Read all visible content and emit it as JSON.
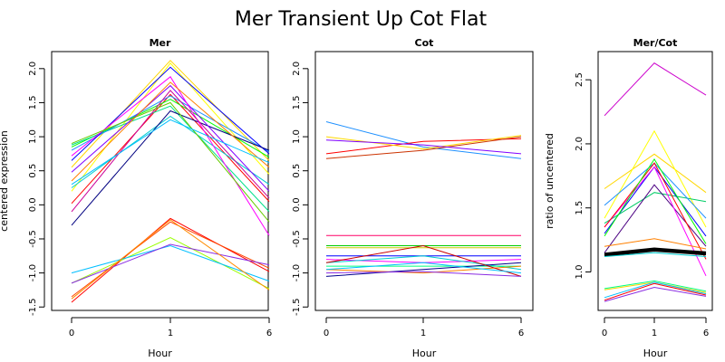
{
  "figure": {
    "title": "Mer Transient Up Cot Flat"
  },
  "chart_data": [
    {
      "type": "line",
      "title": "Mer",
      "xlabel": "Hour",
      "ylabel": "centered expression",
      "categories": [
        "0",
        "1",
        "6"
      ],
      "ylim": [
        -1.55,
        2.25
      ],
      "yticks": [
        -1.5,
        -1.0,
        -0.5,
        0.0,
        0.5,
        1.0,
        1.5,
        2.0
      ],
      "yticklabels": [
        "-1.5",
        "-1.0",
        "-0.5",
        "0.0",
        "0.5",
        "1.0",
        "1.5",
        "2.0"
      ],
      "grid": false,
      "series": [
        {
          "color": "#ff0000",
          "values": [
            0.02,
            1.62,
            0.05
          ]
        },
        {
          "color": "#ffd700",
          "values": [
            0.55,
            2.12,
            0.65
          ]
        },
        {
          "color": "#ffff00",
          "values": [
            0.2,
            2.08,
            0.45
          ]
        },
        {
          "color": "#00ff00",
          "values": [
            0.85,
            1.55,
            0.7
          ]
        },
        {
          "color": "#00e08a",
          "values": [
            0.88,
            1.45,
            -0.1
          ]
        },
        {
          "color": "#00ced1",
          "values": [
            0.25,
            1.3,
            0.3
          ]
        },
        {
          "color": "#1e90ff",
          "values": [
            0.8,
            1.6,
            0.78
          ]
        },
        {
          "color": "#0000ff",
          "values": [
            0.65,
            2.02,
            0.75
          ]
        },
        {
          "color": "#000080",
          "values": [
            -0.3,
            1.38,
            0.8
          ]
        },
        {
          "color": "#8000ff",
          "values": [
            0.48,
            1.75,
            0.2
          ]
        },
        {
          "color": "#ff00ff",
          "values": [
            0.72,
            1.88,
            -0.45
          ]
        },
        {
          "color": "#cc0099",
          "values": [
            -0.1,
            1.68,
            0.1
          ]
        },
        {
          "color": "#ff8000",
          "values": [
            0.35,
            1.8,
            0.55
          ]
        },
        {
          "color": "#66cc00",
          "values": [
            0.9,
            1.5,
            -0.25
          ]
        },
        {
          "color": "#00bfff",
          "values": [
            0.3,
            1.25,
            0.62
          ]
        },
        {
          "color": "#ff0000",
          "values": [
            -1.43,
            -0.2,
            -0.98
          ]
        },
        {
          "color": "#ff4500",
          "values": [
            -1.35,
            -0.25,
            -0.93
          ]
        },
        {
          "color": "#99ff00",
          "values": [
            -1.15,
            -0.48,
            -1.23
          ]
        },
        {
          "color": "#00bfff",
          "values": [
            -1.0,
            -0.6,
            -1.12
          ]
        },
        {
          "color": "#8a2be2",
          "values": [
            -1.15,
            -0.58,
            -0.88
          ]
        },
        {
          "color": "#ff8c00",
          "values": [
            -1.38,
            -0.22,
            -1.25
          ]
        }
      ]
    },
    {
      "type": "line",
      "title": "Cot",
      "xlabel": "Hour",
      "ylabel": "",
      "categories": [
        "0",
        "1",
        "6"
      ],
      "ylim": [
        -1.55,
        2.25
      ],
      "yticks": [
        -1.5,
        -1.0,
        -0.5,
        0.0,
        0.5,
        1.0,
        1.5,
        2.0
      ],
      "yticklabels": [
        "-1.5",
        "-1.0",
        "-0.5",
        "0.0",
        "0.5",
        "1.0",
        "1.5",
        "2.0"
      ],
      "grid": false,
      "series": [
        {
          "color": "#1e90ff",
          "values": [
            1.22,
            0.85,
            0.68
          ]
        },
        {
          "color": "#ff0000",
          "values": [
            0.75,
            0.93,
            0.97
          ]
        },
        {
          "color": "#ffd700",
          "values": [
            1.0,
            0.82,
            1.02
          ]
        },
        {
          "color": "#cc3300",
          "values": [
            0.68,
            0.8,
            1.0
          ]
        },
        {
          "color": "#8000ff",
          "values": [
            0.95,
            0.88,
            0.75
          ]
        },
        {
          "color": "#ff0066",
          "values": [
            -0.45,
            -0.45,
            -0.45
          ]
        },
        {
          "color": "#00cc00",
          "values": [
            -0.6,
            -0.6,
            -0.6
          ]
        },
        {
          "color": "#cccc00",
          "values": [
            -0.63,
            -0.63,
            -0.63
          ]
        },
        {
          "color": "#0000ff",
          "values": [
            -0.75,
            -0.75,
            -0.75
          ]
        },
        {
          "color": "#ff00ff",
          "values": [
            -0.8,
            -0.85,
            -0.8
          ]
        },
        {
          "color": "#00ced1",
          "values": [
            -0.85,
            -0.75,
            -0.95
          ]
        },
        {
          "color": "#00ff7f",
          "values": [
            -0.9,
            -0.9,
            -0.9
          ]
        },
        {
          "color": "#ff8000",
          "values": [
            -0.95,
            -1.0,
            -0.9
          ]
        },
        {
          "color": "#00008b",
          "values": [
            -1.05,
            -0.95,
            -0.85
          ]
        },
        {
          "color": "#cc0000",
          "values": [
            -0.85,
            -0.6,
            -1.05
          ]
        },
        {
          "color": "#00bfff",
          "values": [
            -0.95,
            -0.85,
            -1.0
          ]
        },
        {
          "color": "#8a2be2",
          "values": [
            -1.0,
            -0.98,
            -1.05
          ]
        }
      ]
    },
    {
      "type": "line",
      "title": "Mer/Cot",
      "xlabel": "Hour",
      "ylabel": "ratio of uncentered",
      "categories": [
        "0",
        "1",
        "6"
      ],
      "ylim": [
        0.7,
        2.72
      ],
      "yticks": [
        1.0,
        1.5,
        2.0,
        2.5
      ],
      "yticklabels": [
        "1.0",
        "1.5",
        "2.0",
        "2.5"
      ],
      "grid": false,
      "series": [
        {
          "color": "#cc00cc",
          "values": [
            2.22,
            2.63,
            2.38
          ]
        },
        {
          "color": "#ffd700",
          "values": [
            1.65,
            1.92,
            1.62
          ]
        },
        {
          "color": "#ffff00",
          "values": [
            1.42,
            2.1,
            1.35
          ]
        },
        {
          "color": "#00cc66",
          "values": [
            1.38,
            1.62,
            1.55
          ]
        },
        {
          "color": "#1e90ff",
          "values": [
            1.52,
            1.85,
            1.42
          ]
        },
        {
          "color": "#0000ff",
          "values": [
            1.3,
            1.82,
            1.28
          ]
        },
        {
          "color": "#4b0082",
          "values": [
            1.15,
            1.68,
            1.2
          ]
        },
        {
          "color": "#ff00ff",
          "values": [
            1.35,
            1.82,
            0.97
          ]
        },
        {
          "color": "#ff0000",
          "values": [
            1.35,
            1.85,
            1.1
          ]
        },
        {
          "color": "#00ff00",
          "values": [
            1.28,
            1.88,
            1.22
          ]
        },
        {
          "color": "#ff8000",
          "values": [
            1.2,
            1.26,
            1.18
          ]
        },
        {
          "color": "#000000",
          "values": [
            1.14,
            1.18,
            1.15
          ],
          "bold": true
        },
        {
          "color": "#000000",
          "values": [
            1.13,
            1.17,
            1.14
          ],
          "bold": true
        },
        {
          "color": "#00ced1",
          "values": [
            1.12,
            1.15,
            1.12
          ]
        },
        {
          "color": "#00ff7f",
          "values": [
            0.87,
            0.93,
            0.85
          ]
        },
        {
          "color": "#ffd700",
          "values": [
            0.86,
            0.92,
            0.84
          ]
        },
        {
          "color": "#00bfff",
          "values": [
            0.8,
            0.92,
            0.83
          ]
        },
        {
          "color": "#8a2be2",
          "values": [
            0.77,
            0.88,
            0.81
          ]
        },
        {
          "color": "#ff0000",
          "values": [
            0.78,
            0.91,
            0.82
          ]
        }
      ]
    }
  ]
}
